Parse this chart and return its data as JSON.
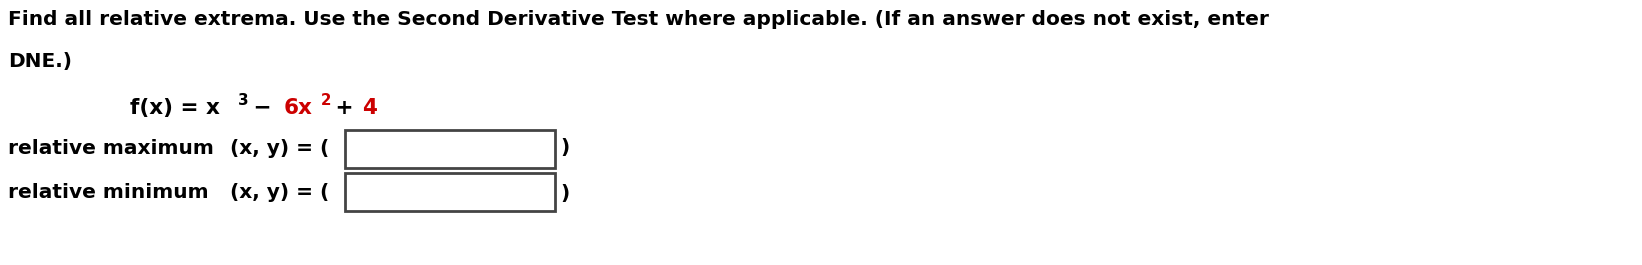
{
  "background_color": "#ffffff",
  "instruction_line1": "Find all relative extrema. Use the Second Derivative Test where applicable. (If an answer does not exist, enter",
  "instruction_line2": "DNE.)",
  "instruction_color": "#000000",
  "instruction_fontsize": 14.5,
  "function_fontsize": 15.5,
  "label_max": "relative maximum",
  "label_min": "relative minimum",
  "label_fontsize": 14.5,
  "xy_text": "(x, y) = (",
  "close_paren": ")",
  "fig_width": 16.42,
  "fig_height": 2.65,
  "dpi": 100
}
